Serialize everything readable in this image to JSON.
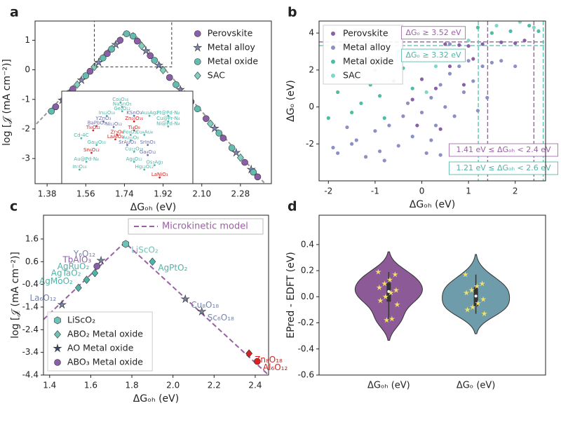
{
  "chart_data": [
    {
      "type": "scatter",
      "panel": "a",
      "xlabel": "ΔGₒₕ (eV)",
      "ylabel": "log [𝒥 (mA cm⁻²)]",
      "xlim": [
        1.324,
        2.424
      ],
      "ylim": [
        -3.85,
        1.65
      ],
      "xticks": [
        1.38,
        1.56,
        1.74,
        1.92,
        {
          "value": 2.1,
          "label": "2.10"
        },
        2.28
      ],
      "yticks": [
        -3,
        -2,
        -1,
        0,
        1
      ],
      "legend": "upper right",
      "line": {
        "color": "#999999",
        "x": [
          1.33,
          1.74,
          1.78,
          2.4
        ],
        "values": [
          -1.83,
          1.25,
          1.25,
          -3.9
        ]
      },
      "series": [
        {
          "name": "Perovskite",
          "marker": "circle",
          "color": "#8b5fa8",
          "x": [
            1.42,
            1.5,
            1.58,
            1.66,
            1.72,
            1.8,
            1.86,
            1.95,
            2.05,
            2.12,
            2.2,
            2.3,
            2.36
          ],
          "values": [
            -1.25,
            -0.65,
            -0.05,
            0.55,
            1.0,
            0.97,
            0.48,
            -0.26,
            -1.08,
            -1.65,
            -2.31,
            -3.13,
            -3.62
          ]
        },
        {
          "name": "Metal alloy",
          "marker": "star",
          "color": "#7d86b8",
          "x": [
            1.45,
            1.54,
            1.62,
            1.7,
            1.84,
            1.9,
            2.0,
            2.16,
            2.26,
            2.33
          ],
          "values": [
            -1.03,
            -0.35,
            0.25,
            0.85,
            0.64,
            0.15,
            -0.67,
            -1.98,
            -2.8,
            -3.37
          ]
        },
        {
          "name": "Metal oxide",
          "marker": "circle",
          "color": "#62bcb0",
          "x": [
            1.4,
            1.48,
            1.56,
            1.64,
            1.68,
            1.75,
            1.78,
            1.88,
            1.98,
            2.08,
            2.18,
            2.24,
            2.34
          ],
          "values": [
            -1.4,
            -0.8,
            -0.2,
            0.4,
            0.7,
            1.22,
            1.14,
            0.32,
            -0.5,
            -1.32,
            -2.14,
            -2.64,
            -3.46
          ]
        },
        {
          "name": "SAC",
          "marker": "diamond",
          "color": "#7fd0c0",
          "x": [
            1.52,
            1.6,
            1.82,
            1.92,
            2.02,
            2.14,
            2.28
          ],
          "values": [
            -0.5,
            0.1,
            0.81,
            -0.01,
            -0.83,
            -1.82,
            -2.97
          ]
        }
      ],
      "inset": {
        "xlim": [
          1.6,
          1.96
        ],
        "ylim": [
          0.1,
          1.65
        ],
        "labels": [
          "Co₃O₁₆",
          "NaSnO₃",
          "Ge₂O₁₂",
          "In₁₂O₁₈",
          "KSnO₃",
          "Au₃Ag₃",
          "Pt@Pd-N₄",
          "YZnO₃",
          "BaPbO₃",
          "Zn₁₀O₁₆",
          "Cu@Pr-N₄",
          "Ti₆O₁₂",
          "Ni₁₂O₁₂",
          "Ti₄O₈",
          "Ni@Pd-N₄",
          "Zr₃O₆",
          "Fe₆O₁₂",
          "Cu₄Au₄",
          "Cd-4C",
          "LaAlO₃",
          "Au₁₂O₈",
          "Ga₁₄O₁₆",
          "SrAuO₃",
          "SrInO₃",
          "Sn₆O₁₂",
          "Cu₁₂O₁₆",
          "Ga₈O₁₂",
          "Au@Pd-N₄",
          "Ag₆O₁₂",
          "Os₃Ag₃",
          "In₇O₁₆",
          "Hg₁₂O₁₂",
          "LaNiO₃"
        ],
        "x": [
          1.76,
          1.765,
          1.765,
          1.72,
          1.8,
          1.845,
          1.9,
          1.71,
          1.69,
          1.8,
          1.9,
          1.68,
          1.74,
          1.8,
          1.9,
          1.75,
          1.79,
          1.83,
          1.645,
          1.745,
          1.79,
          1.69,
          1.78,
          1.84,
          1.675,
          1.8,
          1.84,
          1.66,
          1.8,
          1.86,
          1.64,
          1.83,
          1.875
        ],
        "values": [
          1.5,
          1.42,
          1.34,
          1.26,
          1.26,
          1.26,
          1.26,
          1.16,
          1.08,
          1.16,
          1.16,
          1.0,
          1.06,
          1.0,
          1.07,
          0.92,
          0.92,
          0.92,
          0.86,
          0.84,
          0.82,
          0.74,
          0.74,
          0.74,
          0.6,
          0.62,
          0.56,
          0.44,
          0.44,
          0.38,
          0.3,
          0.3,
          0.16
        ],
        "colors": [
          "#4fb3a6",
          "#4fb3a6",
          "#4fb3a6",
          "#4fb3a6",
          "#6c6fa6",
          "#4fb3a6",
          "#4fb3a6",
          "#6c6fa6",
          "#6c6fa6",
          "#d62222",
          "#4fb3a6",
          "#d62222",
          "#6c6fa6",
          "#d62222",
          "#4fb3a6",
          "#d62222",
          "#4fb3a6",
          "#4fb3a6",
          "#4fb3a6",
          "#d62222",
          "#4fb3a6",
          "#4fb3a6",
          "#6c6fa6",
          "#6c6fa6",
          "#d62222",
          "#4fb3a6",
          "#6c6fa6",
          "#4fb3a6",
          "#4fb3a6",
          "#4fb3a6",
          "#4fb3a6",
          "#4fb3a6",
          "#d62222"
        ]
      }
    },
    {
      "type": "scatter",
      "panel": "b",
      "xlabel": "ΔGₒₕ (eV)",
      "ylabel": "ΔGₒ (eV)",
      "xlim": [
        -2.2,
        2.65
      ],
      "ylim": [
        -4.0,
        4.65
      ],
      "xticks": [
        -2,
        -1,
        0,
        1,
        2
      ],
      "yticks": [
        -2,
        0,
        2,
        4
      ],
      "legend": "upper left",
      "legend_frame": true,
      "series": [
        {
          "name": "Perovskite",
          "color": "#8b5fa8",
          "x": [
            0.5,
            0.8,
            1.0,
            1.3,
            -0.2,
            0.3,
            0.9,
            0.6,
            -0.1,
            0.4,
            1.7,
            2.0,
            2.2,
            1.1,
            0.0
          ],
          "values": [
            3.4,
            3.35,
            3.3,
            3.4,
            0.4,
            1.0,
            1.2,
            2.2,
            -1.0,
            -1.2,
            3.5,
            3.45,
            3.6,
            2.6,
            1.5
          ]
        },
        {
          "name": "Metal alloy",
          "color": "#8c90c6",
          "x": [
            -1.9,
            -1.8,
            -1.6,
            -1.5,
            -1.4,
            -1.2,
            -1.0,
            -0.9,
            -0.7,
            -0.5,
            -0.4,
            -0.2,
            0.0,
            0.1,
            0.2,
            0.3,
            0.4,
            0.5,
            0.6,
            0.7,
            0.8,
            0.9,
            1.0,
            1.1,
            1.2,
            1.3,
            1.5,
            1.7,
            2.0,
            -0.3,
            0.2,
            -0.8,
            0.4,
            1.4,
            0.6
          ],
          "values": [
            -2.2,
            -2.5,
            -1.1,
            -2.0,
            -1.8,
            -2.7,
            -1.3,
            -2.4,
            -1.0,
            -2.1,
            -0.5,
            -1.6,
            -0.3,
            -2.5,
            0.5,
            -1.0,
            1.2,
            0.0,
            1.8,
            -0.5,
            2.2,
            0.8,
            2.5,
            1.4,
            -0.2,
            2.2,
            2.4,
            2.5,
            2.2,
            0.2,
            -1.8,
            -2.9,
            -2.6,
            0.5,
            3.4
          ]
        },
        {
          "name": "Metal oxide",
          "color": "#4fbda4",
          "x": [
            -2.0,
            -1.8,
            -1.5,
            -1.3,
            -1.1,
            -0.9,
            -0.6,
            -0.4,
            -0.2,
            0.0,
            0.3,
            0.8,
            1.2,
            1.5,
            1.9,
            2.3,
            2.5,
            -0.8,
            0.6,
            -1.6
          ],
          "values": [
            -0.6,
            0.8,
            -0.3,
            0.2,
            1.2,
            0.6,
            1.4,
            2.1,
            1.0,
            2.6,
            3.0,
            3.9,
            4.3,
            4.0,
            4.1,
            4.4,
            4.1,
            -0.6,
            4.1,
            1.8
          ]
        },
        {
          "name": "SAC",
          "color": "#7dd8ca",
          "x": [
            -1.0,
            -0.5,
            0.1,
            0.5,
            1.0,
            1.6,
            2.1,
            -1.4,
            0.3,
            2.4
          ],
          "values": [
            2.0,
            3.0,
            0.8,
            2.8,
            3.6,
            4.4,
            4.6,
            1.5,
            2.2,
            4.3
          ]
        }
      ],
      "hlines": [
        {
          "value": 3.52,
          "color": "#9b5fa6"
        },
        {
          "value": 3.32,
          "color": "#5ec4b0"
        }
      ],
      "vlines": [
        {
          "value": 1.41,
          "color": "#9b5fa6"
        },
        {
          "value": 2.4,
          "color": "#9b5fa6"
        },
        {
          "value": 1.21,
          "color": "#5ec4b0"
        },
        {
          "value": 2.6,
          "color": "#5ec4b0"
        }
      ],
      "annotations": [
        {
          "text": "ΔGₒ ≥ 3.52 eV",
          "color": "#9b5fa6"
        },
        {
          "text": "ΔGₒ ≥ 3.32 eV",
          "color": "#4fb3a6"
        },
        {
          "text": "1.41 eV ≤ ΔGₒₕ < 2.4 eV",
          "color": "#9b5fa6"
        },
        {
          "text": "1.21 eV ≤ ΔGₒₕ < 2.6 eV",
          "color": "#4fb3a6"
        }
      ]
    },
    {
      "type": "scatter",
      "panel": "c",
      "xlabel": "ΔGₒₕ (eV)",
      "ylabel": "log [𝒥 (mA cm⁻²)]",
      "xlim": [
        1.37,
        2.465
      ],
      "ylim": [
        -4.4,
        2.65
      ],
      "xticks": [
        1.4,
        1.6,
        1.8,
        {
          "value": 2,
          "label": "2.0"
        },
        2.2,
        2.4
      ],
      "yticks": [
        -4.4,
        -3.4,
        -2.4,
        -1.4,
        -0.4,
        0.6,
        1.6
      ],
      "legend": "lower left",
      "legend_frame": true,
      "line": {
        "name": "Microkinetic model",
        "color": "#9b5fa6",
        "dash": true,
        "x": [
          1.37,
          1.765,
          2.465
        ],
        "values": [
          -1.95,
          1.45,
          -4.4
        ]
      },
      "series": [
        {
          "name": "LiScO₂",
          "marker": "hexagon",
          "color": "#6cc2b7",
          "x": [
            1.77
          ],
          "values": [
            1.38
          ],
          "labels": [
            "LiScO₂"
          ],
          "colors": [
            "#6cc2b7"
          ]
        },
        {
          "name": "ABO₂ Metal oxide",
          "marker": "diamond",
          "color": "#6cc2b7",
          "x": [
            1.54,
            1.58,
            1.62,
            1.9,
            2.37
          ],
          "values": [
            -0.55,
            -0.2,
            0.1,
            0.6,
            -3.45
          ],
          "labels": [
            "AgMoO₂",
            "AgTaO₂",
            "AgRuO₂",
            "AgPtO₂",
            "Zn₈O₁₈"
          ],
          "colors": [
            "#4fb3a6",
            "#4fb3a6",
            "#4fb3a6",
            "#4fb3a6",
            "#d62222"
          ]
        },
        {
          "name": "AO  Metal oxide",
          "marker": "star",
          "color": "#3a4466",
          "x": [
            1.46,
            1.65,
            2.06,
            2.14
          ],
          "values": [
            -1.3,
            0.65,
            -1.05,
            -1.6
          ],
          "labels": [
            "La₆O₁₂",
            "Y₆O₁₂",
            "Cu₈O₁₈",
            "Sc₆O₁₈"
          ],
          "colors": [
            "#7a84a8",
            "#7a84a8",
            "#7a84a8",
            "#7a84a8"
          ]
        },
        {
          "name": "ABO₃ Metal oxide",
          "marker": "circle",
          "color": "#8b5fa8",
          "x": [
            1.63,
            2.41
          ],
          "values": [
            0.4,
            -3.8
          ],
          "labels": [
            "TbAlO₃",
            "Al₆O₁₂"
          ],
          "colors": [
            "#8b5fa8",
            "#d62222"
          ]
        }
      ]
    },
    {
      "type": "violin",
      "panel": "d",
      "ylabel": "EPred - EDFT (eV)",
      "categories": [
        "ΔGₒₕ (eV)",
        "ΔGₒ (eV)"
      ],
      "ylim": [
        -0.6,
        0.625
      ],
      "yticks": [
        -0.6,
        -0.4,
        -0.2,
        {
          "value": 0,
          "label": "0.0"
        },
        0.2,
        0.4
      ],
      "point_color": "#f3e36a",
      "series": [
        {
          "color": "#8c5a96",
          "values": [
            0.19,
            0.17,
            0.13,
            0.1,
            0.07,
            0.05,
            0.03,
            0.0,
            -0.03,
            -0.06,
            -0.17,
            -0.18
          ]
        },
        {
          "color": "#6e9cab",
          "values": [
            0.17,
            0.1,
            0.08,
            0.05,
            0.03,
            -0.02,
            -0.05,
            -0.08,
            -0.1,
            -0.13
          ]
        }
      ]
    }
  ]
}
